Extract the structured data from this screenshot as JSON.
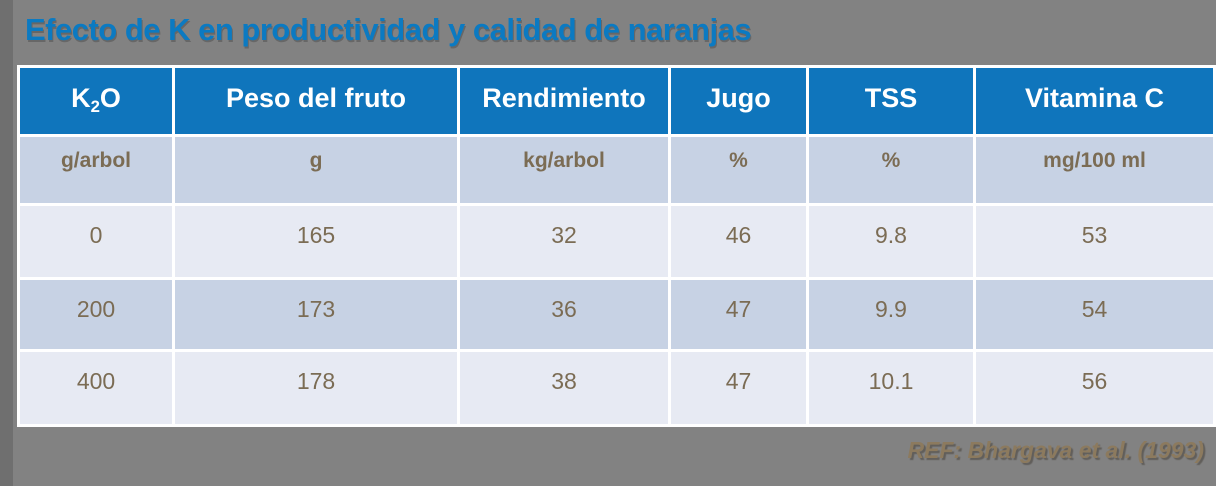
{
  "title": "Efecto de K en productividad y calidad de naranjas",
  "colors": {
    "background": "#828282",
    "background_edge": "#6F6F6F",
    "title_blue": "#0B7AC2",
    "header_blue": "#0F75BC",
    "band_row_bg": "#C7D2E4",
    "light_row_bg": "#E7EAF3",
    "cell_text_brown": "#7B6C54",
    "reference_tan": "#8C7A5E",
    "grid_white": "#FFFFFF"
  },
  "table": {
    "k2o_header": {
      "pre": "K",
      "sub": "2",
      "post": "O"
    },
    "headers": [
      "Peso del fruto",
      "Rendimiento",
      "Jugo",
      "TSS",
      "Vitamina C"
    ],
    "units": [
      "g/arbol",
      "g",
      "kg/arbol",
      "%",
      "%",
      "mg/100 ml"
    ],
    "rows": [
      [
        "0",
        "165",
        "32",
        "46",
        "9.8",
        "53"
      ],
      [
        "200",
        "173",
        "36",
        "47",
        "9.9",
        "54"
      ],
      [
        "400",
        "178",
        "38",
        "47",
        "10.1",
        "56"
      ]
    ]
  },
  "reference": "REF: Bhargava et al. (1993)",
  "chart_data": {
    "type": "table",
    "title": "Efecto de K en productividad y calidad de naranjas",
    "columns": [
      {
        "name": "K2O",
        "unit": "g/arbol"
      },
      {
        "name": "Peso del fruto",
        "unit": "g"
      },
      {
        "name": "Rendimiento",
        "unit": "kg/arbol"
      },
      {
        "name": "Jugo",
        "unit": "%"
      },
      {
        "name": "TSS",
        "unit": "%"
      },
      {
        "name": "Vitamina C",
        "unit": "mg/100 ml"
      }
    ],
    "rows": [
      [
        0,
        165,
        32,
        46,
        9.8,
        53
      ],
      [
        200,
        173,
        36,
        47,
        9.9,
        54
      ],
      [
        400,
        178,
        38,
        47,
        10.1,
        56
      ]
    ],
    "reference": "Bhargava et al. (1993)"
  }
}
